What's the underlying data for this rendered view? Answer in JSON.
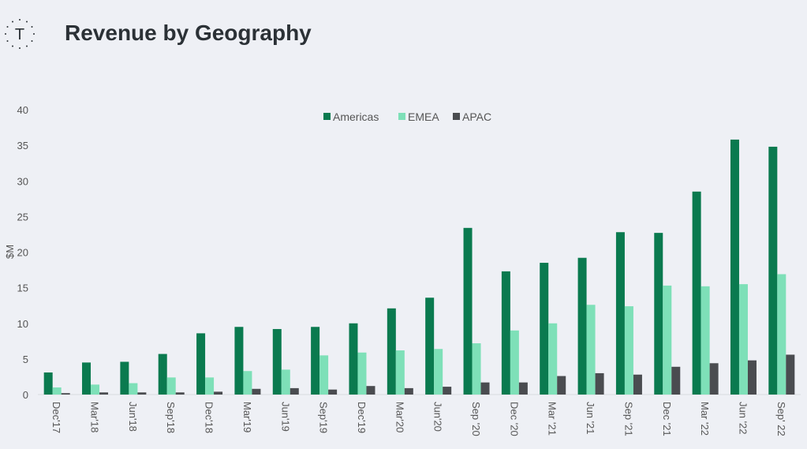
{
  "header": {
    "logo_letter": "T",
    "title": "Revenue by Geography"
  },
  "colors": {
    "background": "#eef0f5",
    "americas": "#0a7a4f",
    "emea": "#7ee0b8",
    "apac": "#4a4c50",
    "axis_text": "#555555",
    "title": "#2b3136"
  },
  "chart_data": {
    "type": "bar",
    "title": "",
    "xlabel": "",
    "ylabel": "$M",
    "ylim": [
      0,
      40
    ],
    "yticks": [
      0,
      5,
      10,
      15,
      20,
      25,
      30,
      35,
      40
    ],
    "grid": false,
    "legend_position": "top-center",
    "categories": [
      "Dec'17",
      "Mar'18",
      "Jun'18",
      "Sep'18",
      "Dec'18",
      "Mar'19",
      "Jun'19",
      "Sep'19",
      "Dec'19",
      "Mar'20",
      "Jun'20",
      "Sep '20",
      "Dec '20",
      "Mar '21",
      "Jun '21",
      "Sep '21",
      "Dec '21",
      "Mar '22",
      "Jun '22",
      "Sep' 22"
    ],
    "series": [
      {
        "name": "Americas",
        "color": "#0a7a4f",
        "values": [
          3.1,
          4.5,
          4.6,
          5.7,
          8.6,
          9.5,
          9.2,
          9.5,
          10.0,
          12.1,
          13.6,
          23.4,
          17.3,
          18.5,
          19.2,
          22.8,
          22.7,
          28.5,
          35.8,
          34.8
        ]
      },
      {
        "name": "EMEA",
        "color": "#7ee0b8",
        "values": [
          1.0,
          1.4,
          1.6,
          2.4,
          2.4,
          3.3,
          3.5,
          5.5,
          5.9,
          6.2,
          6.4,
          7.2,
          9.0,
          10.0,
          12.6,
          12.4,
          15.3,
          15.2,
          15.5,
          16.9
        ]
      },
      {
        "name": "APAC",
        "color": "#4a4c50",
        "values": [
          0.2,
          0.3,
          0.3,
          0.3,
          0.4,
          0.8,
          0.9,
          0.7,
          1.2,
          0.9,
          1.1,
          1.7,
          1.7,
          2.6,
          3.0,
          2.8,
          3.9,
          4.4,
          4.8,
          5.6
        ]
      }
    ]
  }
}
